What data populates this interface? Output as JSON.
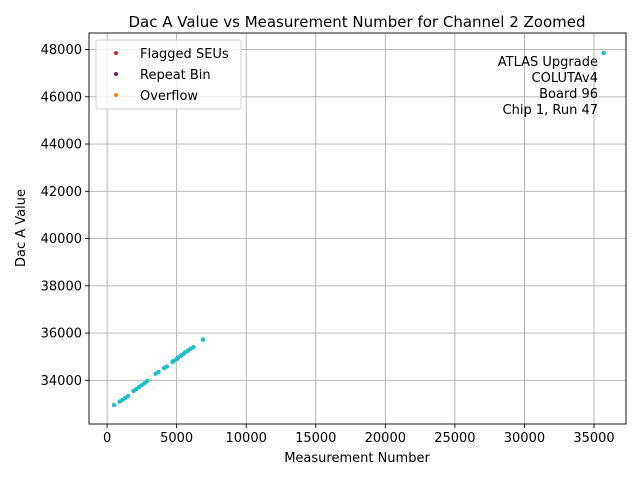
{
  "chart_data": {
    "type": "scatter",
    "title": "Dac A Value vs Measurement Number for Channel 2 Zoomed",
    "xlabel": "Measurement Number",
    "ylabel": "Dac A Value",
    "xlim": [
      -1300,
      37300
    ],
    "ylim": [
      32150,
      48700
    ],
    "xticks": [
      0,
      5000,
      10000,
      15000,
      20000,
      25000,
      30000,
      35000
    ],
    "yticks": [
      34000,
      36000,
      38000,
      40000,
      42000,
      44000,
      46000,
      48000
    ],
    "xtick_labels": [
      "0",
      "5000",
      "10000",
      "15000",
      "20000",
      "25000",
      "30000",
      "35000"
    ],
    "ytick_labels": [
      "34000",
      "36000",
      "38000",
      "40000",
      "42000",
      "44000",
      "46000",
      "48000"
    ],
    "grid": true,
    "legend_position": "top-left",
    "legend": [
      {
        "label": "Flagged SEUs",
        "color": "#d62728"
      },
      {
        "label": "Repeat Bin",
        "color": "#6a1b6a"
      },
      {
        "label": "Overflow",
        "color": "#ff7f0e"
      }
    ],
    "series": [
      {
        "color": "#17becf",
        "points": [
          [
            500,
            32950
          ],
          [
            900,
            33100
          ],
          [
            1100,
            33170
          ],
          [
            1300,
            33250
          ],
          [
            1500,
            33330
          ],
          [
            1900,
            33550
          ],
          [
            2100,
            33630
          ],
          [
            2300,
            33720
          ],
          [
            2500,
            33800
          ],
          [
            2700,
            33880
          ],
          [
            2900,
            33980
          ],
          [
            3500,
            34280
          ],
          [
            3700,
            34350
          ],
          [
            4100,
            34520
          ],
          [
            4300,
            34580
          ],
          [
            4700,
            34780
          ],
          [
            4800,
            34820
          ],
          [
            5000,
            34900
          ],
          [
            5100,
            34960
          ],
          [
            5300,
            35040
          ],
          [
            5500,
            35120
          ],
          [
            5600,
            35180
          ],
          [
            5800,
            35250
          ],
          [
            6000,
            35330
          ],
          [
            6200,
            35400
          ],
          [
            6900,
            35720
          ],
          [
            35700,
            47850
          ]
        ]
      }
    ],
    "annotation": [
      "ATLAS Upgrade",
      "COLUTAv4",
      "Board 96",
      "Chip 1, Run 47"
    ]
  }
}
